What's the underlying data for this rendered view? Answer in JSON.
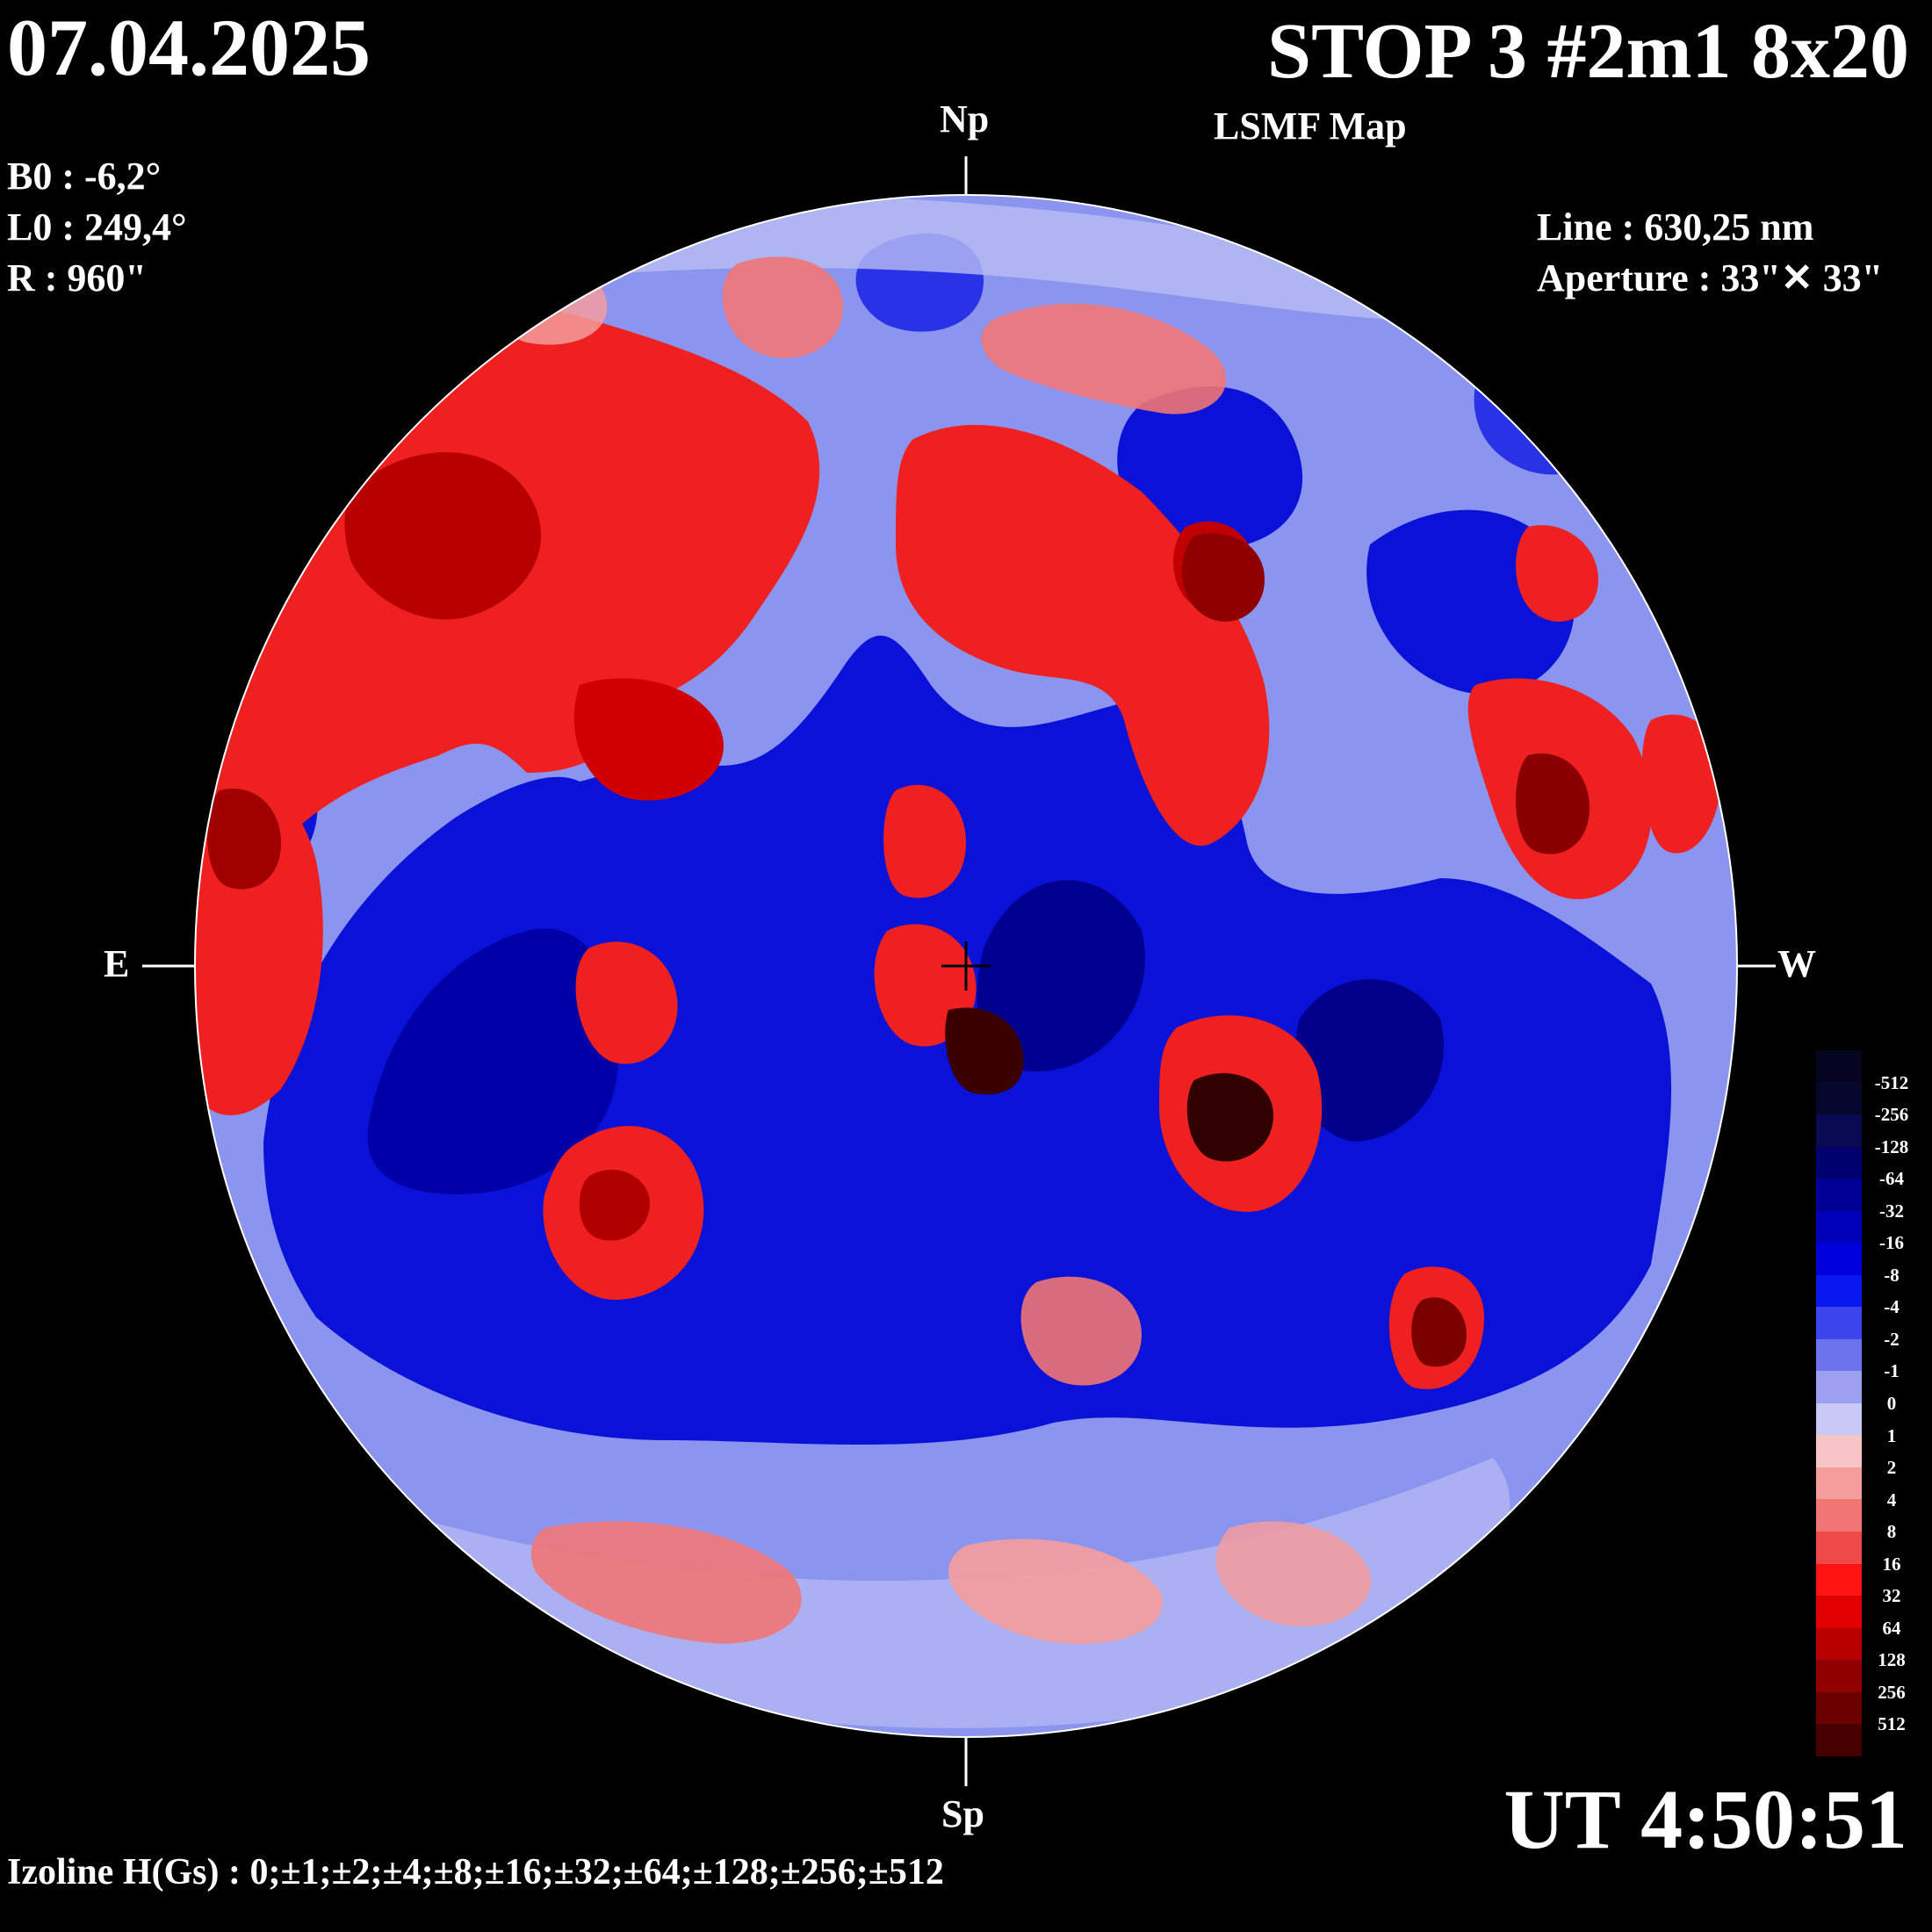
{
  "header": {
    "date": "07.04.2025",
    "title": "STOP 3 #2m1 8x20",
    "subtitle": "LSMF  Map"
  },
  "params": {
    "b0": "B0 : -6,2°",
    "l0": "L0 : 249,4°",
    "r": "R  : 960\""
  },
  "instrument": {
    "line": "Line :  630,25 nm",
    "aperture": "Aperture : 33\"✕ 33\""
  },
  "compass": {
    "north": "Np",
    "south": "Sp",
    "east": "E",
    "west": "W"
  },
  "time": "UT 4:50:51",
  "izoline": "Izoline H(Gs) : 0;±1;±2;±4;±8;±16;±32;±64;±128;±256;±512",
  "colorbar": {
    "levels": [
      "-512",
      "-256",
      "-128",
      "-64",
      "-32",
      "-16",
      "-8",
      "-4",
      "-2",
      "-1",
      "0",
      "1",
      "2",
      "4",
      "8",
      "16",
      "32",
      "64",
      "128",
      "256",
      "512"
    ],
    "colors": [
      "#07072e",
      "#0a0a52",
      "#00006e",
      "#000095",
      "#0000b8",
      "#0000dc",
      "#0a18f0",
      "#3c46ec",
      "#6c73ec",
      "#9da0f0",
      "#c8c9f5",
      "#f7c5c5",
      "#f59c9c",
      "#f07676",
      "#ee4848",
      "#ff1212",
      "#e00000",
      "#b80000",
      "#900000",
      "#6a0000",
      "#460000"
    ]
  },
  "map": {
    "background": "#8b94ef",
    "positive_color": "#ee2020",
    "negative_color": "#0a12d8"
  }
}
